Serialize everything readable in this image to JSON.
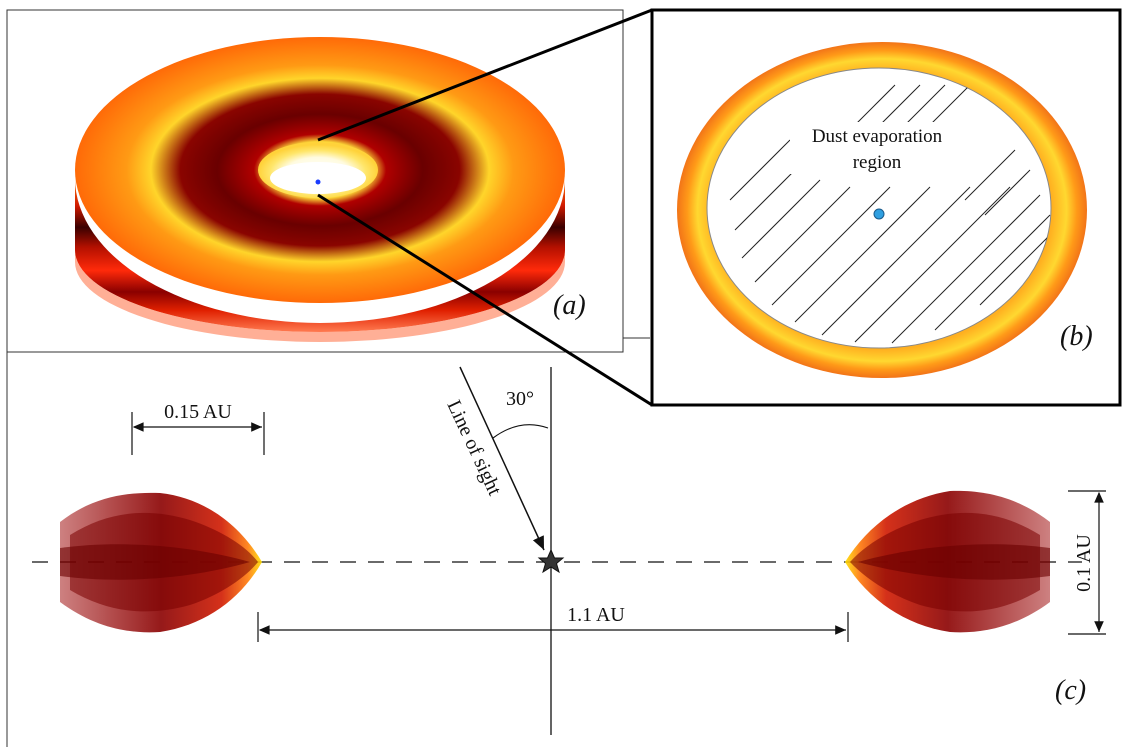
{
  "panels": {
    "a": {
      "label": "(a)"
    },
    "b": {
      "label": "(b)",
      "region_label_line1": "Dust evaporation",
      "region_label_line2": "region"
    },
    "c": {
      "label": "(c)"
    }
  },
  "annotations": {
    "width_rim": "0.15 AU",
    "inner_radius": "1.1 AU",
    "height_rim": "0.1 AU",
    "angle": "30°",
    "line_of_sight": "Line of sight"
  },
  "colors": {
    "hot_yellow": "#fff23a",
    "orange": "#ff8a10",
    "dark_red": "#7a0000",
    "star_dot": "#2f9fe0"
  }
}
